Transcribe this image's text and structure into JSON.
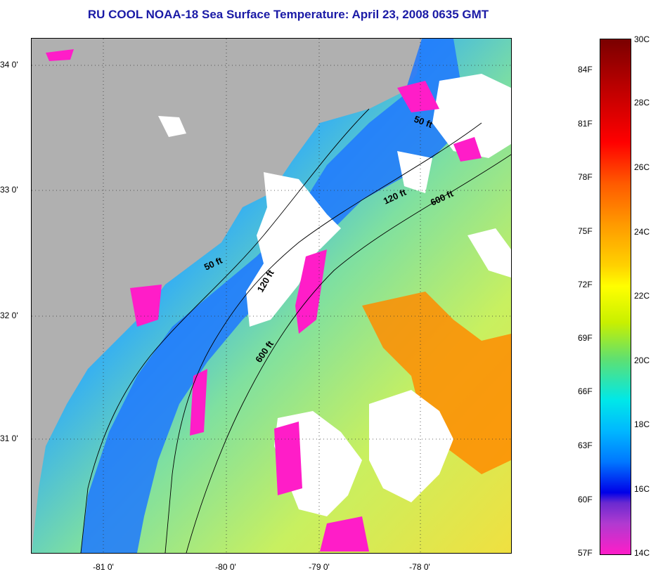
{
  "title": "RU COOL  NOAA-18  Sea Surface Temperature:  April 23, 2008 0635 GMT",
  "map": {
    "longitude_labels": [
      "-81 0'",
      "-80 0'",
      "-79 0'",
      "-78 0'"
    ],
    "latitude_labels": [
      "34 0'",
      "33 0'",
      "32 0'",
      "31 0'"
    ],
    "contour_labels": [
      "50 ft",
      "120 ft",
      "600 ft",
      "50 ft",
      "120 ft",
      "600 ft"
    ],
    "colors": {
      "land": "#b0b0b0",
      "cloud": "#ffffff",
      "cold": "#ff1dc8",
      "cool_blue": "#1e78ff",
      "warm_orange": "#ff8c00"
    }
  },
  "colorbar": {
    "fahrenheit": [
      "84F",
      "81F",
      "78F",
      "75F",
      "72F",
      "69F",
      "66F",
      "63F",
      "60F",
      "57F"
    ],
    "celsius": [
      "30C",
      "28C",
      "26C",
      "24C",
      "22C",
      "20C",
      "18C",
      "16C",
      "14C"
    ]
  }
}
